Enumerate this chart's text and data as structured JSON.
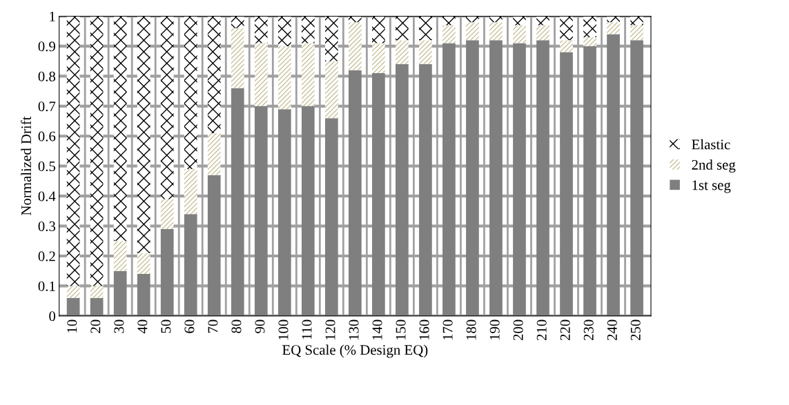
{
  "chart_data": {
    "type": "bar",
    "stacked": true,
    "xlabel": "EQ Scale (% Design EQ)",
    "ylabel": "Normalized Drift",
    "categories": [
      "10",
      "20",
      "30",
      "40",
      "50",
      "60",
      "70",
      "80",
      "90",
      "100",
      "110",
      "120",
      "130",
      "140",
      "150",
      "160",
      "170",
      "180",
      "190",
      "200",
      "210",
      "220",
      "230",
      "240",
      "250"
    ],
    "series": [
      {
        "name": "1st seg",
        "color": "#7f7f7f",
        "values": [
          0.06,
          0.06,
          0.15,
          0.14,
          0.29,
          0.34,
          0.47,
          0.76,
          0.7,
          0.69,
          0.7,
          0.66,
          0.82,
          0.81,
          0.84,
          0.84,
          0.91,
          0.92,
          0.92,
          0.91,
          0.92,
          0.88,
          0.9,
          0.94,
          0.92
        ]
      },
      {
        "name": "2nd seg",
        "color": "#c9c29b",
        "values": [
          0.04,
          0.04,
          0.1,
          0.07,
          0.1,
          0.15,
          0.14,
          0.2,
          0.21,
          0.21,
          0.21,
          0.19,
          0.16,
          0.1,
          0.08,
          0.08,
          0.06,
          0.06,
          0.06,
          0.06,
          0.05,
          0.04,
          0.03,
          0.04,
          0.05
        ]
      },
      {
        "name": "Elastic",
        "color": "#000000",
        "values": [
          0.9,
          0.9,
          0.75,
          0.79,
          0.61,
          0.51,
          0.39,
          0.04,
          0.09,
          0.1,
          0.09,
          0.15,
          0.02,
          0.09,
          0.08,
          0.08,
          0.03,
          0.02,
          0.02,
          0.03,
          0.03,
          0.08,
          0.07,
          0.02,
          0.03
        ]
      }
    ],
    "ylim": [
      0,
      1
    ],
    "yticks": [
      0,
      0.1,
      0.2,
      0.3,
      0.4,
      0.5,
      0.6,
      0.7,
      0.8,
      0.9,
      1
    ],
    "grid": true,
    "legend": "right"
  }
}
